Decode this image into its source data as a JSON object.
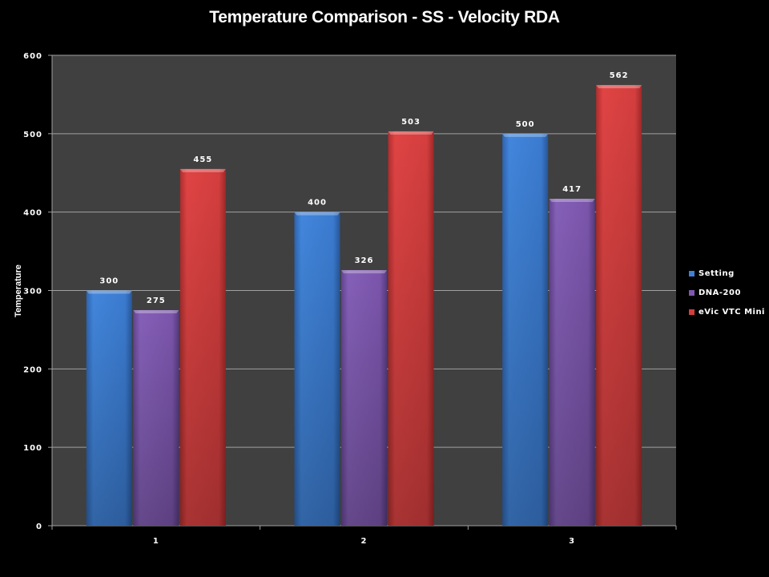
{
  "chart_data": {
    "type": "bar",
    "title": "Temperature Comparison - SS - Velocity RDA",
    "xlabel": "",
    "ylabel": "Temperature",
    "ylim": [
      0,
      600
    ],
    "yticks": [
      0,
      100,
      200,
      300,
      400,
      500,
      600
    ],
    "grid": true,
    "legend_position": "right",
    "categories": [
      "1",
      "2",
      "3"
    ],
    "series": [
      {
        "name": "Setting",
        "color": "#3f7fd6",
        "values": [
          300,
          400,
          500
        ]
      },
      {
        "name": "DNA-200",
        "color": "#7f56b0",
        "values": [
          275,
          326,
          417
        ]
      },
      {
        "name": "eVic VTC Mini",
        "color": "#d63c3c",
        "values": [
          455,
          503,
          562
        ]
      }
    ]
  }
}
